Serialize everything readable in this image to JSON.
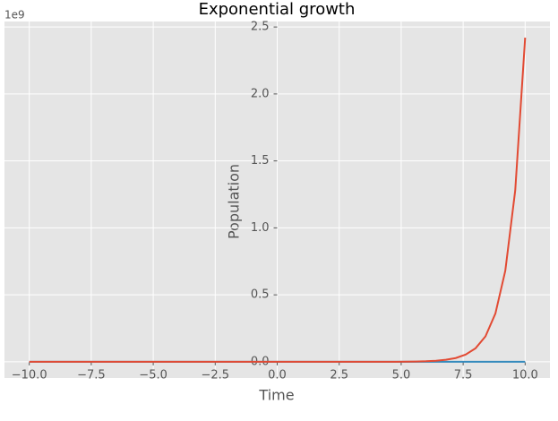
{
  "chart_data": {
    "type": "line",
    "title": "Exponential growth",
    "xlabel": "Time",
    "ylabel": "Population",
    "y_offset_text": "1e9",
    "x": [
      -10,
      -9.6,
      -9.2,
      -8.8,
      -8.4,
      -8,
      -7.6,
      -7.2,
      -6.8,
      -6.4,
      -6,
      -5.6,
      -5.2,
      -4.8,
      -4.4,
      -4,
      -3.6,
      -3.2,
      -2.8,
      -2.4,
      -2,
      -1.6,
      -1.2,
      -0.8,
      -0.4,
      0,
      0.4,
      0.8,
      1.2,
      1.6,
      2,
      2.4,
      2.8,
      3.2,
      3.6,
      4,
      4.4,
      4.8,
      5.2,
      5.6,
      6,
      6.4,
      6.8,
      7.2,
      7.6,
      8,
      8.4,
      8.8,
      9.2,
      9.6,
      10
    ],
    "series": [
      {
        "color": "#E24A33",
        "values": [
          0,
          0,
          0,
          0,
          0,
          0,
          0,
          0,
          0,
          0,
          0,
          0,
          0,
          0,
          0,
          0,
          0,
          0,
          0,
          0,
          0,
          0,
          0,
          0,
          0,
          0,
          0,
          0,
          0,
          0,
          0,
          0,
          0,
          0,
          0,
          0,
          0,
          0,
          0.001,
          0.002,
          0.004,
          0.008,
          0.015,
          0.028,
          0.054,
          0.101,
          0.19,
          0.36,
          0.68,
          1.28,
          2.42
        ]
      },
      {
        "color": "#348ABD",
        "values": [
          0,
          0,
          0,
          0,
          0,
          0,
          0,
          0,
          0,
          0,
          0,
          0,
          0,
          0,
          0,
          0,
          0,
          0,
          0,
          0,
          0,
          0,
          0,
          0,
          0,
          0,
          0,
          0,
          0,
          0,
          0,
          0,
          0,
          0,
          0,
          0,
          0,
          0,
          0,
          0,
          0,
          0,
          0,
          0,
          0,
          0,
          0,
          0,
          0,
          0,
          0
        ]
      }
    ],
    "xlim": [
      -11,
      11
    ],
    "xticks": [
      {
        "value": -10,
        "label": "−10.0"
      },
      {
        "value": -7.5,
        "label": "−7.5"
      },
      {
        "value": -5,
        "label": "−5.0"
      },
      {
        "value": -2.5,
        "label": "−2.5"
      },
      {
        "value": 0,
        "label": "0.0"
      },
      {
        "value": 2.5,
        "label": "2.5"
      },
      {
        "value": 5,
        "label": "5.0"
      },
      {
        "value": 7.5,
        "label": "7.5"
      },
      {
        "value": 10,
        "label": "10.0"
      }
    ],
    "ylim": [
      -0.121,
      2.541
    ],
    "yticks": [
      {
        "value": 0,
        "label": "0.0"
      },
      {
        "value": 0.5,
        "label": "0.5"
      },
      {
        "value": 1,
        "label": "1.0"
      },
      {
        "value": 1.5,
        "label": "1.5"
      },
      2.5,
      {
        "value": 2,
        "label": "2.0"
      }
    ],
    "grid": true
  }
}
